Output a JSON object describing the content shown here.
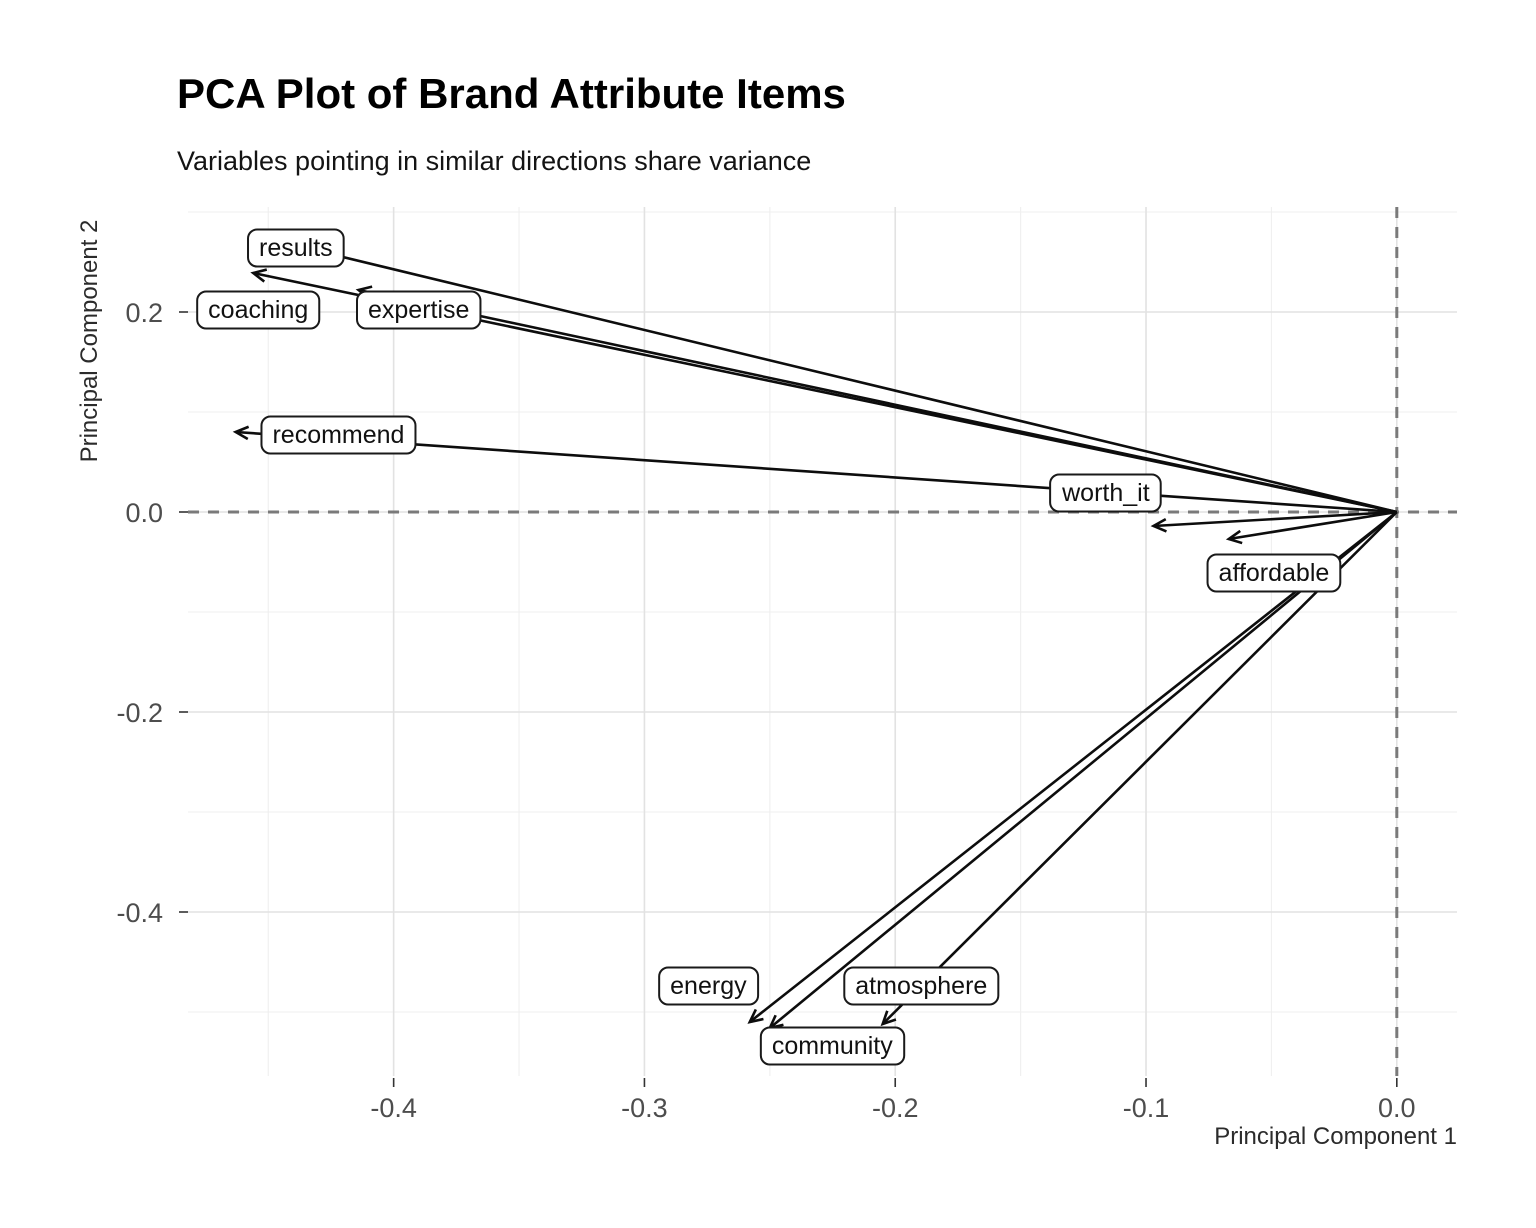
{
  "chart_data": {
    "type": "scatter",
    "subtype": "pca-variable-loadings-arrows",
    "title": "PCA Plot of Brand Attribute Items",
    "subtitle": "Variables pointing in similar directions share variance",
    "xlabel": "Principal Component 1",
    "ylabel": "Principal Component 2",
    "xlim": [
      -0.482,
      0.024
    ],
    "ylim": [
      -0.564,
      0.305
    ],
    "grid": true,
    "x_ticks": [
      -0.4,
      -0.3,
      -0.2,
      -0.1,
      0.0
    ],
    "x_tick_labels": [
      "-0.4",
      "-0.3",
      "-0.2",
      "-0.1",
      "0.0"
    ],
    "y_ticks": [
      0.2,
      0.0,
      -0.2,
      -0.4
    ],
    "y_tick_labels": [
      "0.2",
      "0.0",
      "-0.2",
      "-0.4"
    ],
    "x_minor_ticks": [
      -0.45,
      -0.35,
      -0.25,
      -0.15,
      -0.05
    ],
    "y_minor_ticks": [
      0.3,
      0.1,
      -0.1,
      -0.3,
      -0.5
    ],
    "reference_lines": [
      {
        "axis": "h",
        "value": 0,
        "style": "dashed"
      },
      {
        "axis": "v",
        "value": 0,
        "style": "dashed"
      }
    ],
    "arrows_origin": {
      "x": 0,
      "y": 0
    },
    "loadings": [
      {
        "label": "results",
        "x": -0.445,
        "y": 0.27,
        "label_x": -0.439,
        "label_y": 0.264
      },
      {
        "label": "coaching",
        "x": -0.456,
        "y": 0.239,
        "label_x": -0.454,
        "label_y": 0.202
      },
      {
        "label": "expertise",
        "x": -0.414,
        "y": 0.222,
        "label_x": -0.39,
        "label_y": 0.202
      },
      {
        "label": "recommend",
        "x": -0.463,
        "y": 0.08,
        "label_x": -0.422,
        "label_y": 0.077
      },
      {
        "label": "worth_it",
        "x": -0.097,
        "y": -0.014,
        "label_x": -0.116,
        "label_y": 0.019
      },
      {
        "label": "affordable",
        "x": -0.067,
        "y": -0.027,
        "label_x": -0.049,
        "label_y": -0.061
      },
      {
        "label": "energy",
        "x": -0.258,
        "y": -0.51,
        "label_x": -0.2745,
        "label_y": -0.474
      },
      {
        "label": "community",
        "x": -0.25,
        "y": -0.516,
        "label_x": -0.2251,
        "label_y": -0.534
      },
      {
        "label": "atmosphere",
        "x": -0.205,
        "y": -0.512,
        "label_x": -0.1896,
        "label_y": -0.474
      }
    ],
    "colors": {
      "background": "#ffffff",
      "arrow": "#0d0d0d",
      "grid_major": "#e2e2e2",
      "grid_minor": "#efefef",
      "reference_dashed": "#7a7a7a",
      "label_border": "#1a1a1a",
      "label_fill": "#ffffff",
      "label_text": "#111111",
      "tick_label": "#4d4d4d",
      "axis_title": "#2b2b2b",
      "tick_mark": "#333333"
    }
  }
}
